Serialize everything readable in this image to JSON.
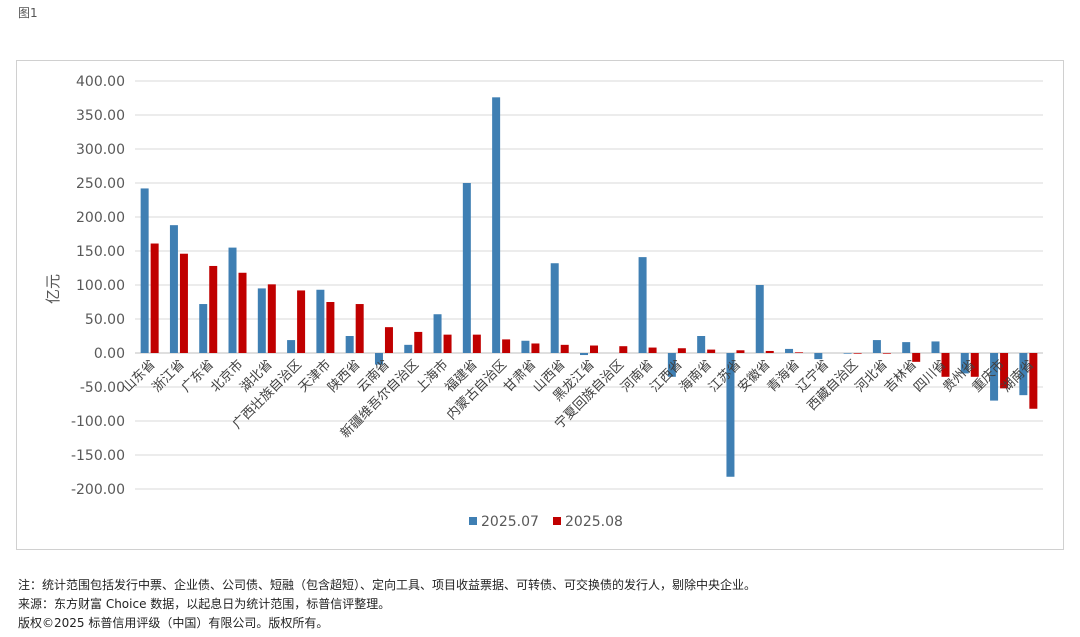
{
  "figure_label": "图1",
  "chart_data": {
    "type": "bar",
    "ylabel": "亿元",
    "ylim": [
      -200,
      400
    ],
    "yticks": [
      "400.00",
      "350.00",
      "300.00",
      "250.00",
      "200.00",
      "150.00",
      "100.00",
      "50.00",
      "0.00",
      "-50.00",
      "-100.00",
      "-150.00",
      "-200.00"
    ],
    "ytick_values": [
      400,
      350,
      300,
      250,
      200,
      150,
      100,
      50,
      0,
      -50,
      -100,
      -150,
      -200
    ],
    "grid": true,
    "legend_position": "bottom",
    "categories": [
      "山东省",
      "浙江省",
      "广东省",
      "北京市",
      "湖北省",
      "广西壮族自治区",
      "天津市",
      "陕西省",
      "云南省",
      "新疆维吾尔自治区",
      "上海市",
      "福建省",
      "内蒙古自治区",
      "甘肃省",
      "山西省",
      "黑龙江省",
      "宁夏回族自治区",
      "河南省",
      "江西省",
      "海南省",
      "江苏省",
      "安徽省",
      "青海省",
      "辽宁省",
      "西藏自治区",
      "河北省",
      "吉林省",
      "四川省",
      "贵州省",
      "重庆市",
      "湖南省"
    ],
    "series": [
      {
        "name": "2025.07",
        "color": "#3f7fb3",
        "values": [
          242,
          188,
          72,
          155,
          95,
          19,
          93,
          25,
          -17,
          12,
          57,
          250,
          376,
          18,
          132,
          -3,
          0,
          141,
          -35,
          25,
          -182,
          100,
          6,
          -9,
          -1,
          19,
          16,
          17,
          -30,
          -70,
          -62
        ]
      },
      {
        "name": "2025.08",
        "color": "#c00000",
        "values": [
          161,
          146,
          128,
          118,
          101,
          92,
          75,
          72,
          38,
          31,
          27,
          27,
          20,
          14,
          12,
          11,
          10,
          8,
          7,
          5,
          4,
          3,
          1,
          0,
          -1,
          -1,
          -13,
          -35,
          -35,
          -52,
          -82
        ]
      }
    ]
  },
  "notes": [
    "注：统计范围包括发行中票、企业债、公司债、短融（包含超短）、定向工具、项目收益票据、可转债、可交换债的发行人，剔除中央企业。",
    "来源：东方财富 Choice 数据，以起息日为统计范围，标普信评整理。",
    "版权©2025 标普信用评级（中国）有限公司。版权所有。"
  ]
}
